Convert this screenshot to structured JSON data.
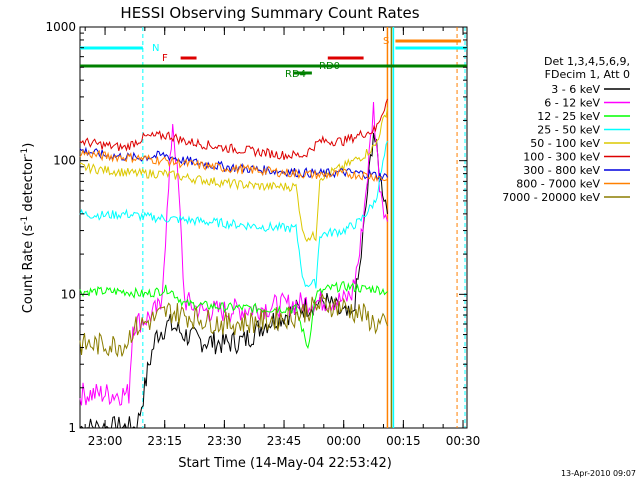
{
  "chart_data": {
    "type": "line",
    "title": "HESSI Observing Summary Count Rates",
    "ylabel_main": "Count Rate (s",
    "ylabel_sup": "-1",
    "ylabel_rest": " detector",
    "ylabel_sup2": "-1",
    "ylabel_end": ")",
    "xlabel": "Start Time (14-May-04 22:53:42)",
    "y_scale": "log",
    "ylim": [
      1,
      1000
    ],
    "y_ticks": [
      "1",
      "10",
      "100",
      "1000"
    ],
    "x_start": "22:53:42",
    "x_end": "00:31:00",
    "x_ticks": [
      "23:00",
      "23:15",
      "23:30",
      "23:45",
      "00:00",
      "00:15",
      "00:30"
    ],
    "legend_header": [
      "Det 1,3,4,5,6,9,",
      "FDecim 1, Att 0"
    ],
    "legend": [
      {
        "name": "3 - 6 keV",
        "color": "#000000"
      },
      {
        "name": "6 - 12 keV",
        "color": "#ff00ff"
      },
      {
        "name": "12 - 25 keV",
        "color": "#00ff00"
      },
      {
        "name": "25 - 50 keV",
        "color": "#00ffff"
      },
      {
        "name": "50 - 100 keV",
        "color": "#dcc800"
      },
      {
        "name": "100 - 300 keV",
        "color": "#dd0000"
      },
      {
        "name": "300 - 800 keV",
        "color": "#0000dd"
      },
      {
        "name": "800 - 7000 keV",
        "color": "#ff8000"
      },
      {
        "name": "7000 - 20000 keV",
        "color": "#8b7d00"
      }
    ],
    "flag_labels": {
      "N": "N",
      "F": "F",
      "RD0": "RD0",
      "RD4": "RD4",
      "S": "S"
    },
    "series": [
      {
        "name": "3 - 6 keV",
        "color": "#000000",
        "points": [
          [
            "22:53:42",
            1.0
          ],
          [
            "23:08:00",
            1.0
          ],
          [
            "23:10:00",
            2.0
          ],
          [
            "23:11:00",
            3.0
          ],
          [
            "23:13:00",
            5.0
          ],
          [
            "23:16:00",
            6.0
          ],
          [
            "23:18:00",
            5.5
          ],
          [
            "23:20:00",
            5.0
          ],
          [
            "23:24:00",
            4.5
          ],
          [
            "23:30:00",
            4.3
          ],
          [
            "23:35:00",
            4.5
          ],
          [
            "23:40:00",
            6.0
          ],
          [
            "23:45:00",
            7.0
          ],
          [
            "23:50:00",
            8.0
          ],
          [
            "23:55:00",
            9.0
          ],
          [
            "00:00:00",
            7.0
          ],
          [
            "00:02:00",
            6.5
          ],
          [
            "00:04:00",
            15.0
          ],
          [
            "00:06:00",
            60.0
          ],
          [
            "00:07:30",
            170.0
          ],
          [
            "00:09:00",
            80.0
          ],
          [
            "00:10:30",
            50.0
          ],
          [
            "00:11:00",
            40.0
          ]
        ]
      },
      {
        "name": "6 - 12 keV",
        "color": "#ff00ff",
        "points": [
          [
            "22:53:42",
            1.8
          ],
          [
            "23:06:00",
            1.8
          ],
          [
            "23:07:00",
            6.0
          ],
          [
            "23:10:00",
            6.5
          ],
          [
            "23:14:00",
            8.0
          ],
          [
            "23:16:00",
            60.0
          ],
          [
            "23:17:00",
            200.0
          ],
          [
            "23:18:30",
            60.0
          ],
          [
            "23:20:00",
            9.0
          ],
          [
            "23:24:00",
            7.5
          ],
          [
            "23:30:00",
            7.5
          ],
          [
            "23:40:00",
            8.0
          ],
          [
            "23:48:00",
            8.5
          ],
          [
            "23:55:00",
            9.0
          ],
          [
            "00:00:00",
            9.0
          ],
          [
            "00:02:00",
            10.0
          ],
          [
            "00:04:00",
            20.0
          ],
          [
            "00:06:00",
            80.0
          ],
          [
            "00:07:30",
            250.0
          ],
          [
            "00:09:00",
            70.0
          ],
          [
            "00:10:30",
            40.0
          ],
          [
            "00:11:00",
            35.0
          ]
        ]
      },
      {
        "name": "12 - 25 keV",
        "color": "#00ff00",
        "points": [
          [
            "22:53:42",
            10.5
          ],
          [
            "23:05:00",
            10.5
          ],
          [
            "23:10:00",
            10.0
          ],
          [
            "23:16:00",
            11.0
          ],
          [
            "23:20:00",
            8.5
          ],
          [
            "23:30:00",
            8.0
          ],
          [
            "23:40:00",
            7.8
          ],
          [
            "23:48:00",
            7.8
          ],
          [
            "23:51:00",
            4.0
          ],
          [
            "23:53:00",
            10.0
          ],
          [
            "23:56:00",
            11.0
          ],
          [
            "00:00:00",
            11.5
          ],
          [
            "00:05:00",
            11.0
          ],
          [
            "00:08:00",
            11.0
          ],
          [
            "00:11:00",
            10.5
          ]
        ]
      },
      {
        "name": "25 - 50 keV",
        "color": "#00ffff",
        "points": [
          [
            "22:53:42",
            40.0
          ],
          [
            "23:00:00",
            39.0
          ],
          [
            "23:05:00",
            40.0
          ],
          [
            "23:10:00",
            38.0
          ],
          [
            "23:15:00",
            37.0
          ],
          [
            "23:20:00",
            36.0
          ],
          [
            "23:30:00",
            34.0
          ],
          [
            "23:40:00",
            32.0
          ],
          [
            "23:48:00",
            31.0
          ],
          [
            "23:50:00",
            12.0
          ],
          [
            "23:53:00",
            12.0
          ],
          [
            "23:54:00",
            28.0
          ],
          [
            "00:00:00",
            30.0
          ],
          [
            "00:04:00",
            35.0
          ],
          [
            "00:08:00",
            50.0
          ],
          [
            "00:11:00",
            140.0
          ]
        ]
      },
      {
        "name": "50 - 100 keV",
        "color": "#dcc800",
        "points": [
          [
            "22:53:42",
            90.0
          ],
          [
            "23:00:00",
            85.0
          ],
          [
            "23:08:00",
            80.0
          ],
          [
            "23:15:00",
            80.0
          ],
          [
            "23:20:00",
            75.0
          ],
          [
            "23:30:00",
            68.0
          ],
          [
            "23:40:00",
            64.0
          ],
          [
            "23:48:00",
            64.0
          ],
          [
            "23:50:00",
            27.0
          ],
          [
            "23:53:00",
            27.0
          ],
          [
            "23:54:00",
            75.0
          ],
          [
            "00:00:00",
            90.0
          ],
          [
            "00:05:00",
            110.0
          ],
          [
            "00:08:00",
            130.0
          ],
          [
            "00:11:00",
            250.0
          ]
        ]
      },
      {
        "name": "100 - 300 keV",
        "color": "#dd0000",
        "points": [
          [
            "22:53:42",
            140.0
          ],
          [
            "23:00:00",
            130.0
          ],
          [
            "23:05:00",
            125.0
          ],
          [
            "23:10:00",
            150.0
          ],
          [
            "23:16:00",
            155.0
          ],
          [
            "23:20:00",
            140.0
          ],
          [
            "23:30:00",
            125.0
          ],
          [
            "23:40:00",
            115.0
          ],
          [
            "23:45:00",
            110.0
          ],
          [
            "23:50:00",
            110.0
          ],
          [
            "23:54:00",
            140.0
          ],
          [
            "00:00:00",
            140.0
          ],
          [
            "00:05:00",
            160.0
          ],
          [
            "00:08:00",
            170.0
          ],
          [
            "00:11:00",
            290.0
          ]
        ]
      },
      {
        "name": "300 - 800 keV",
        "color": "#0000dd",
        "points": [
          [
            "22:53:42",
            120.0
          ],
          [
            "23:00:00",
            110.0
          ],
          [
            "23:08:00",
            105.0
          ],
          [
            "23:15:00",
            110.0
          ],
          [
            "23:20:00",
            100.0
          ],
          [
            "23:30:00",
            90.0
          ],
          [
            "23:40:00",
            85.0
          ],
          [
            "23:48:00",
            82.0
          ],
          [
            "23:55:00",
            80.0
          ],
          [
            "00:00:00",
            82.0
          ],
          [
            "00:05:00",
            80.0
          ],
          [
            "00:08:00",
            78.0
          ],
          [
            "00:11:00",
            75.0
          ]
        ]
      },
      {
        "name": "800 - 7000 keV",
        "color": "#ff8000",
        "points": [
          [
            "22:53:42",
            115.0
          ],
          [
            "23:00:00",
            108.0
          ],
          [
            "23:08:00",
            105.0
          ],
          [
            "23:15:00",
            100.0
          ],
          [
            "23:20:00",
            95.0
          ],
          [
            "23:30:00",
            88.0
          ],
          [
            "23:40:00",
            84.0
          ],
          [
            "23:48:00",
            80.0
          ],
          [
            "23:55:00",
            78.0
          ],
          [
            "00:00:00",
            80.0
          ],
          [
            "00:05:00",
            78.0
          ],
          [
            "00:08:00",
            76.0
          ],
          [
            "00:11:00",
            72.0
          ]
        ]
      },
      {
        "name": "7000 - 20000 keV",
        "color": "#8b7d00",
        "points": [
          [
            "22:53:42",
            4.2
          ],
          [
            "23:05:00",
            4.2
          ],
          [
            "23:07:00",
            5.5
          ],
          [
            "23:12:00",
            6.5
          ],
          [
            "23:16:00",
            7.5
          ],
          [
            "23:20:00",
            7.0
          ],
          [
            "23:30:00",
            6.0
          ],
          [
            "23:40:00",
            6.3
          ],
          [
            "23:48:00",
            7.0
          ],
          [
            "23:55:00",
            8.5
          ],
          [
            "00:00:00",
            8.0
          ],
          [
            "00:05:00",
            7.0
          ],
          [
            "00:08:00",
            6.0
          ],
          [
            "00:11:00",
            5.8
          ]
        ]
      }
    ]
  },
  "footer_timestamp": "13-Apr-2010 09:07"
}
